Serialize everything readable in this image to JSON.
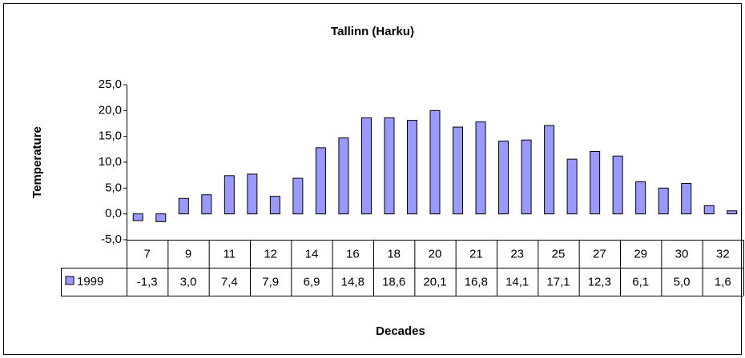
{
  "chart_data": {
    "type": "bar",
    "title": "Tallinn (Harku)",
    "y_label": "Temperature",
    "x_label": "Decades",
    "categories": [
      null,
      null,
      null,
      null,
      null,
      null,
      null,
      null,
      null,
      null,
      null,
      null,
      null,
      null,
      null,
      null,
      null,
      null,
      null,
      null,
      null,
      null,
      null,
      null,
      null,
      null,
      null
    ],
    "values": [
      -1.3,
      -1.5,
      3.0,
      3.7,
      7.4,
      7.7,
      3.4,
      6.9,
      12.8,
      14.7,
      18.6,
      18.6,
      18.1,
      20.0,
      16.8,
      17.8,
      14.1,
      14.3,
      17.1,
      10.6,
      12.1,
      11.2,
      6.2,
      5.0,
      5.9,
      1.6,
      0.6
    ],
    "color": "#9999ff",
    "ylim": [
      -5,
      25
    ],
    "yticks": [
      {
        "value": -5,
        "label": "-5,0"
      },
      {
        "value": 0,
        "label": "0,0"
      },
      {
        "value": 5,
        "label": "5,0"
      },
      {
        "value": 10,
        "label": "10,0"
      },
      {
        "value": 15,
        "label": "15,0"
      },
      {
        "value": 20,
        "label": "20,0"
      },
      {
        "value": 25,
        "label": "25,0"
      }
    ],
    "data_table": {
      "series_name": "1999",
      "categories": [
        "7",
        "9",
        "11",
        "12",
        "14",
        "16",
        "18",
        "20",
        "21",
        "23",
        "25",
        "27",
        "29",
        "30",
        "32"
      ],
      "values": [
        -1.3,
        3.0,
        7.4,
        7.9,
        6.9,
        14.8,
        18.6,
        20.1,
        16.8,
        14.1,
        17.1,
        12.3,
        6.1,
        5.0,
        1.6
      ],
      "value_labels": [
        "-1,3",
        "3,0",
        "7,4",
        "7,9",
        "6,9",
        "14,8",
        "18,6",
        "20,1",
        "16,8",
        "14,1",
        "17,1",
        "12,3",
        "6,1",
        "5,0",
        "1,6"
      ]
    }
  }
}
